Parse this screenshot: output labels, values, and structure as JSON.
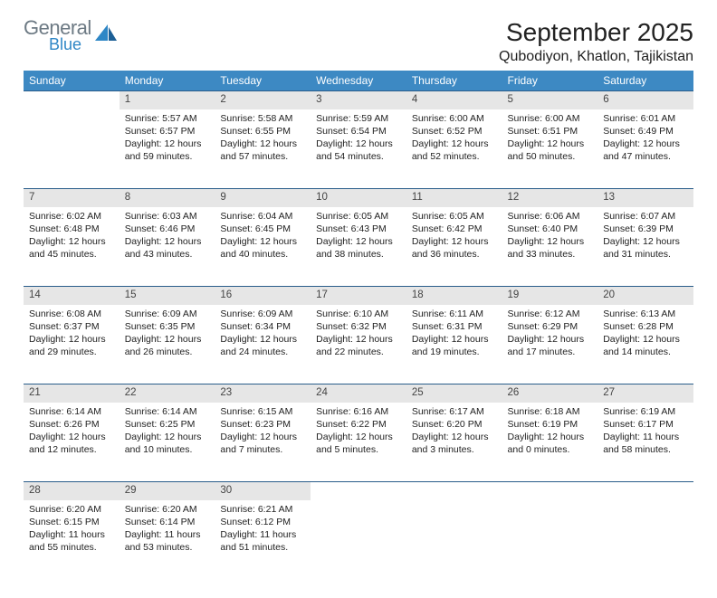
{
  "logo": {
    "general": "General",
    "blue": "Blue"
  },
  "title": "September 2025",
  "location": "Qubodiyon, Khatlon, Tajikistan",
  "header_bg": "#3d89c3",
  "daynum_bg": "#e6e6e6",
  "border_color": "#2a5d8a",
  "weekdays": [
    "Sunday",
    "Monday",
    "Tuesday",
    "Wednesday",
    "Thursday",
    "Friday",
    "Saturday"
  ],
  "weeks": [
    [
      null,
      {
        "n": "1",
        "sr": "5:57 AM",
        "ss": "6:57 PM",
        "dl": "12 hours and 59 minutes."
      },
      {
        "n": "2",
        "sr": "5:58 AM",
        "ss": "6:55 PM",
        "dl": "12 hours and 57 minutes."
      },
      {
        "n": "3",
        "sr": "5:59 AM",
        "ss": "6:54 PM",
        "dl": "12 hours and 54 minutes."
      },
      {
        "n": "4",
        "sr": "6:00 AM",
        "ss": "6:52 PM",
        "dl": "12 hours and 52 minutes."
      },
      {
        "n": "5",
        "sr": "6:00 AM",
        "ss": "6:51 PM",
        "dl": "12 hours and 50 minutes."
      },
      {
        "n": "6",
        "sr": "6:01 AM",
        "ss": "6:49 PM",
        "dl": "12 hours and 47 minutes."
      }
    ],
    [
      {
        "n": "7",
        "sr": "6:02 AM",
        "ss": "6:48 PM",
        "dl": "12 hours and 45 minutes."
      },
      {
        "n": "8",
        "sr": "6:03 AM",
        "ss": "6:46 PM",
        "dl": "12 hours and 43 minutes."
      },
      {
        "n": "9",
        "sr": "6:04 AM",
        "ss": "6:45 PM",
        "dl": "12 hours and 40 minutes."
      },
      {
        "n": "10",
        "sr": "6:05 AM",
        "ss": "6:43 PM",
        "dl": "12 hours and 38 minutes."
      },
      {
        "n": "11",
        "sr": "6:05 AM",
        "ss": "6:42 PM",
        "dl": "12 hours and 36 minutes."
      },
      {
        "n": "12",
        "sr": "6:06 AM",
        "ss": "6:40 PM",
        "dl": "12 hours and 33 minutes."
      },
      {
        "n": "13",
        "sr": "6:07 AM",
        "ss": "6:39 PM",
        "dl": "12 hours and 31 minutes."
      }
    ],
    [
      {
        "n": "14",
        "sr": "6:08 AM",
        "ss": "6:37 PM",
        "dl": "12 hours and 29 minutes."
      },
      {
        "n": "15",
        "sr": "6:09 AM",
        "ss": "6:35 PM",
        "dl": "12 hours and 26 minutes."
      },
      {
        "n": "16",
        "sr": "6:09 AM",
        "ss": "6:34 PM",
        "dl": "12 hours and 24 minutes."
      },
      {
        "n": "17",
        "sr": "6:10 AM",
        "ss": "6:32 PM",
        "dl": "12 hours and 22 minutes."
      },
      {
        "n": "18",
        "sr": "6:11 AM",
        "ss": "6:31 PM",
        "dl": "12 hours and 19 minutes."
      },
      {
        "n": "19",
        "sr": "6:12 AM",
        "ss": "6:29 PM",
        "dl": "12 hours and 17 minutes."
      },
      {
        "n": "20",
        "sr": "6:13 AM",
        "ss": "6:28 PM",
        "dl": "12 hours and 14 minutes."
      }
    ],
    [
      {
        "n": "21",
        "sr": "6:14 AM",
        "ss": "6:26 PM",
        "dl": "12 hours and 12 minutes."
      },
      {
        "n": "22",
        "sr": "6:14 AM",
        "ss": "6:25 PM",
        "dl": "12 hours and 10 minutes."
      },
      {
        "n": "23",
        "sr": "6:15 AM",
        "ss": "6:23 PM",
        "dl": "12 hours and 7 minutes."
      },
      {
        "n": "24",
        "sr": "6:16 AM",
        "ss": "6:22 PM",
        "dl": "12 hours and 5 minutes."
      },
      {
        "n": "25",
        "sr": "6:17 AM",
        "ss": "6:20 PM",
        "dl": "12 hours and 3 minutes."
      },
      {
        "n": "26",
        "sr": "6:18 AM",
        "ss": "6:19 PM",
        "dl": "12 hours and 0 minutes."
      },
      {
        "n": "27",
        "sr": "6:19 AM",
        "ss": "6:17 PM",
        "dl": "11 hours and 58 minutes."
      }
    ],
    [
      {
        "n": "28",
        "sr": "6:20 AM",
        "ss": "6:15 PM",
        "dl": "11 hours and 55 minutes."
      },
      {
        "n": "29",
        "sr": "6:20 AM",
        "ss": "6:14 PM",
        "dl": "11 hours and 53 minutes."
      },
      {
        "n": "30",
        "sr": "6:21 AM",
        "ss": "6:12 PM",
        "dl": "11 hours and 51 minutes."
      },
      null,
      null,
      null,
      null
    ]
  ],
  "labels": {
    "sunrise": "Sunrise:",
    "sunset": "Sunset:",
    "daylight": "Daylight:"
  }
}
